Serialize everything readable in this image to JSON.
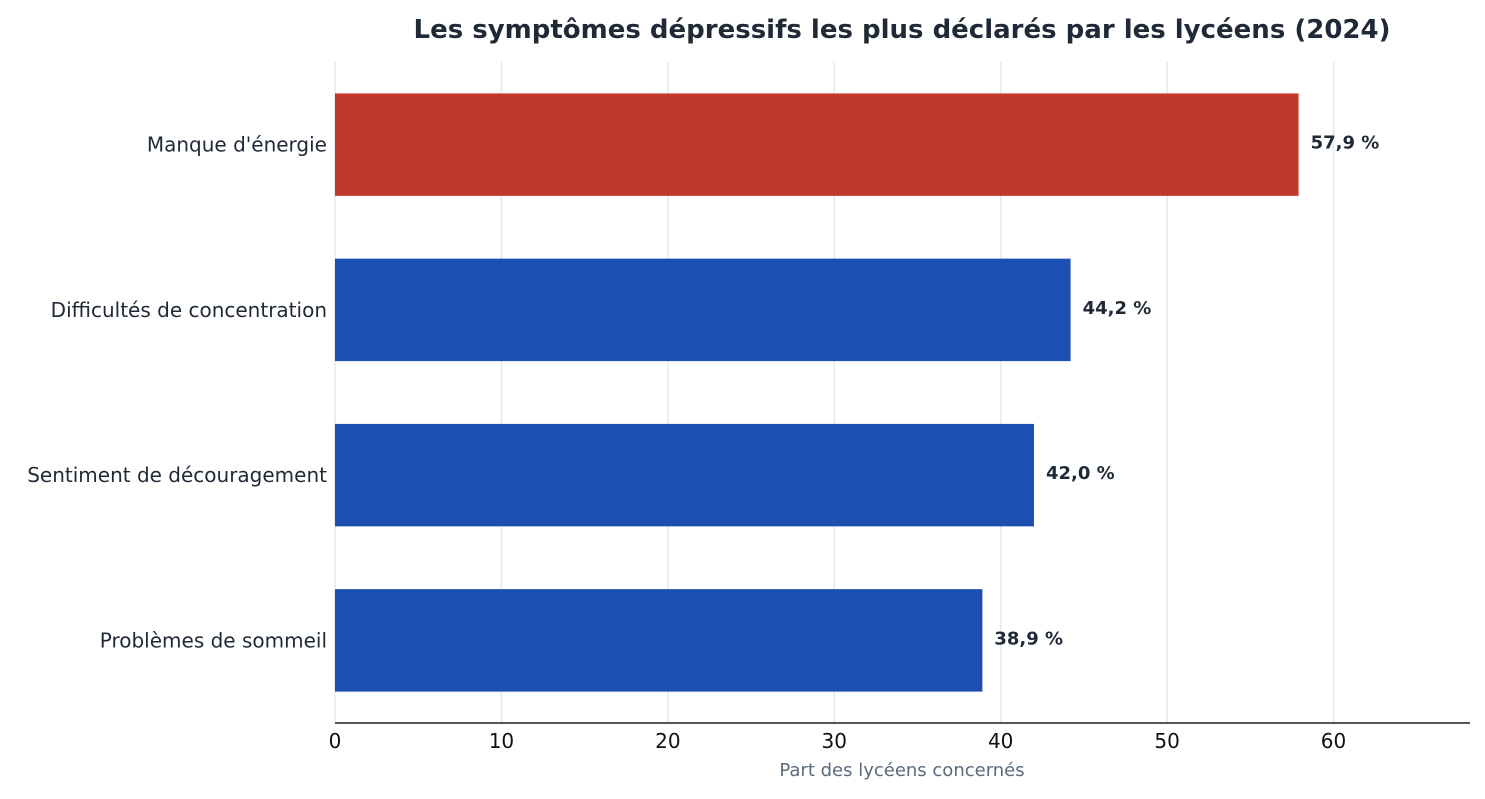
{
  "chart_data": {
    "type": "bar",
    "orientation": "horizontal",
    "title": "Les symptômes dépressifs les plus déclarés par les lycéens (2024)",
    "xlabel": "Part des lycéens concernés",
    "ylabel": "",
    "categories": [
      "Manque d'énergie",
      "Difficultés de concentration",
      "Sentiment de découragement",
      "Problèmes de sommeil"
    ],
    "values": [
      57.9,
      44.2,
      42.0,
      38.9
    ],
    "value_labels": [
      "57,9 %",
      "44,2 %",
      "42,0 %",
      "38,9 %"
    ],
    "bar_colors": [
      "#c0392b",
      "#1b4fb0",
      "#1b4fb0",
      "#1b4fb0"
    ],
    "xlim": [
      0,
      68.2
    ],
    "xticks": [
      0,
      10,
      20,
      30,
      40,
      50,
      60
    ],
    "xtick_labels": [
      "0",
      "10",
      "20",
      "30",
      "40",
      "50",
      "60"
    ],
    "grid": true,
    "grid_axis": "x",
    "legend": "none"
  }
}
